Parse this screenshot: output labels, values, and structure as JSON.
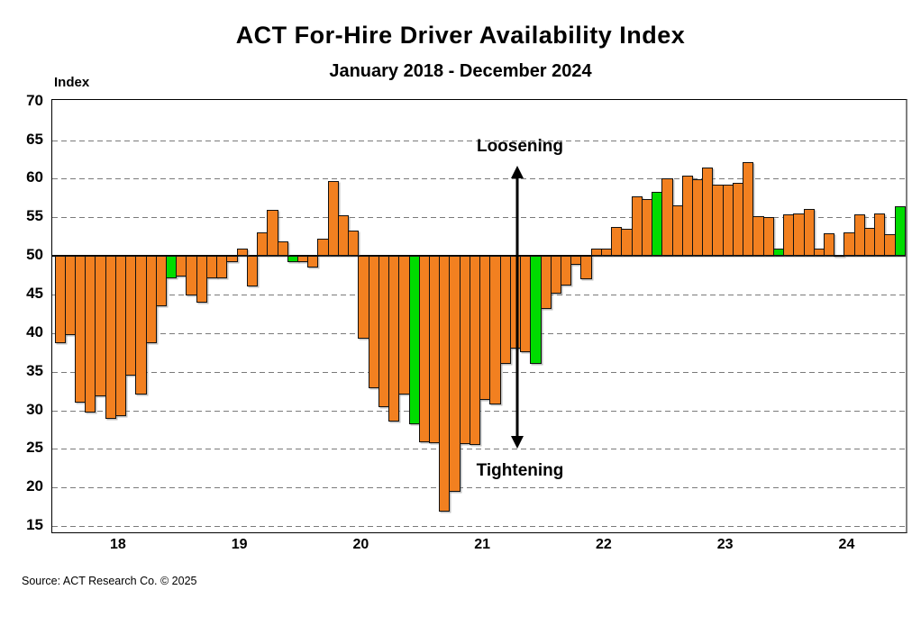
{
  "source": "Source: ACT Research Co. © 2025",
  "chart_data": {
    "type": "bar",
    "title": "ACT For-Hire Driver Availability Index",
    "subtitle": "January 2018 - December 2024",
    "ylabel": "Index",
    "xlabel": "",
    "baseline": 50,
    "ylim": [
      15,
      70
    ],
    "ytick_values": [
      70,
      65,
      60,
      55,
      50,
      45,
      40,
      35,
      30,
      25,
      20,
      15
    ],
    "grid": "dashed horizontal",
    "x_start": "2018-01",
    "x_end": "2024-12",
    "x_year_labels": [
      "18",
      "19",
      "20",
      "21",
      "22",
      "23",
      "24"
    ],
    "annotations": {
      "above_baseline": "Loosening",
      "below_baseline": "Tightening"
    },
    "highlight_note": "December bars highlighted green",
    "colors": {
      "bar": "#F28020",
      "december_highlight": "#00DC00",
      "gridline": "#7a7a7a",
      "baseline": "#000000"
    },
    "series": [
      {
        "name": "Driver Availability Index",
        "values": [
          38.7,
          39.8,
          31.0,
          29.7,
          31.8,
          28.9,
          29.2,
          34.5,
          32.0,
          38.7,
          43.5,
          47.1,
          47.3,
          44.9,
          43.9,
          47.1,
          47.1,
          49.2,
          51.0,
          46.1,
          53.0,
          56.0,
          51.9,
          49.2,
          49.2,
          48.5,
          52.2,
          59.7,
          55.3,
          53.3,
          39.3,
          32.9,
          30.4,
          28.6,
          32.1,
          28.2,
          25.9,
          25.7,
          16.9,
          19.4,
          25.6,
          25.5,
          31.3,
          30.8,
          36.0,
          38.0,
          37.5,
          36.0,
          43.1,
          45.1,
          46.2,
          48.9,
          47.0,
          51.0,
          50.9,
          53.8,
          53.5,
          57.7,
          57.4,
          58.3,
          60.0,
          56.6,
          60.4,
          59.9,
          61.5,
          59.2,
          59.2,
          59.5,
          62.1,
          55.2,
          55.0,
          50.9,
          55.4,
          55.5,
          56.1,
          51.0,
          52.9,
          50.1,
          53.1,
          55.4,
          53.6,
          55.5,
          52.8,
          56.4
        ]
      }
    ]
  }
}
